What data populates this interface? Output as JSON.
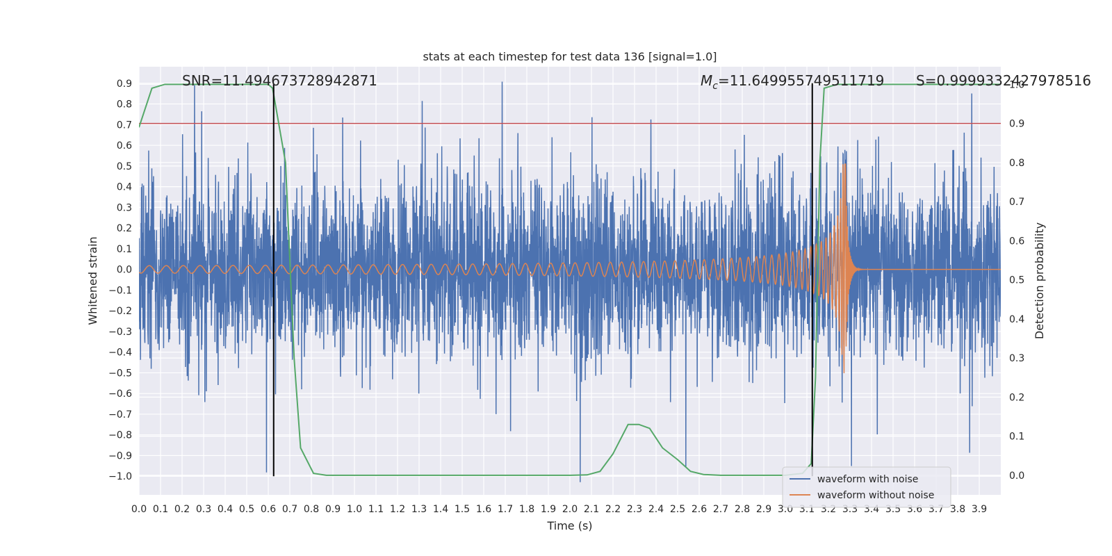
{
  "chart_data": {
    "type": "line",
    "title": "stats at each timestep for test data 136 [signal=1.0]",
    "xlabel": "Time (s)",
    "ylabel": "Whitened strain",
    "y2label": "Detection probability",
    "xlim": [
      0.0,
      4.0
    ],
    "ylim": [
      -1.09,
      0.98
    ],
    "y2lim": [
      -0.05,
      1.045
    ],
    "x_ticks": [
      0.0,
      0.1,
      0.2,
      0.3,
      0.4,
      0.5,
      0.6,
      0.7,
      0.8,
      0.9,
      1.0,
      1.1,
      1.2,
      1.3,
      1.4,
      1.5,
      1.6,
      1.7,
      1.8,
      1.9,
      2.0,
      2.1,
      2.2,
      2.3,
      2.4,
      2.5,
      2.6,
      2.7,
      2.8,
      2.9,
      3.0,
      3.1,
      3.2,
      3.3,
      3.4,
      3.5,
      3.6,
      3.7,
      3.8,
      3.9
    ],
    "y_ticks": [
      0.9,
      0.8,
      0.7,
      0.6,
      0.5,
      0.4,
      0.3,
      0.2,
      0.1,
      0.0,
      -0.1,
      -0.2,
      -0.3,
      -0.4,
      -0.5,
      -0.6,
      -0.7,
      -0.8,
      -0.9,
      -1.0
    ],
    "y_tick_labels": [
      "0.9",
      "0.8",
      "0.7",
      "0.6",
      "0.5",
      "0.4",
      "0.3",
      "0.2",
      "0.1",
      "0.0",
      "−0.1",
      "−0.2",
      "−0.3",
      "−0.4",
      "−0.5",
      "−0.6",
      "−0.7",
      "−0.8",
      "−0.9",
      "−1.0"
    ],
    "y2_ticks": [
      1.0,
      0.9,
      0.8,
      0.7,
      0.6,
      0.5,
      0.4,
      0.3,
      0.2,
      0.1,
      0.0
    ],
    "y2_tick_labels": [
      "1.0",
      "0.9",
      "0.8",
      "0.7",
      "0.6",
      "0.5",
      "0.4",
      "0.3",
      "0.2",
      "0.1",
      "0.0"
    ],
    "grid": true,
    "legend_position": "bottom-right",
    "series": [
      {
        "name": "waveform with noise",
        "color": "#4c72b0",
        "axis": "left",
        "kind": "noise",
        "x_range": [
          0.0,
          4.0
        ],
        "approx_envelope": [
          -1.0,
          0.9
        ]
      },
      {
        "name": "waveform without noise",
        "color": "#dd8452",
        "axis": "left",
        "kind": "chirp",
        "x_range": [
          0.0,
          4.0
        ],
        "merger_time": 3.28,
        "peak_amplitude": 0.51
      },
      {
        "name": "",
        "color": "#55a868",
        "axis": "right",
        "kind": "probability",
        "points": [
          [
            0.0,
            0.89
          ],
          [
            0.06,
            0.99
          ],
          [
            0.12,
            1.0
          ],
          [
            0.3,
            1.0
          ],
          [
            0.6,
            1.0
          ],
          [
            0.62,
            0.99
          ],
          [
            0.68,
            0.8
          ],
          [
            0.72,
            0.3
          ],
          [
            0.75,
            0.07
          ],
          [
            0.81,
            0.005
          ],
          [
            0.87,
            0.0
          ],
          [
            1.5,
            0.0
          ],
          [
            2.0,
            0.0
          ],
          [
            2.08,
            0.001
          ],
          [
            2.14,
            0.01
          ],
          [
            2.2,
            0.055
          ],
          [
            2.27,
            0.13
          ],
          [
            2.32,
            0.13
          ],
          [
            2.37,
            0.12
          ],
          [
            2.43,
            0.07
          ],
          [
            2.5,
            0.04
          ],
          [
            2.56,
            0.01
          ],
          [
            2.62,
            0.002
          ],
          [
            2.7,
            0.0
          ],
          [
            3.0,
            0.0
          ],
          [
            3.08,
            0.005
          ],
          [
            3.12,
            0.03
          ],
          [
            3.14,
            0.25
          ],
          [
            3.16,
            0.8
          ],
          [
            3.18,
            0.99
          ],
          [
            3.24,
            1.0
          ],
          [
            3.4,
            1.0
          ],
          [
            4.0,
            1.0
          ]
        ]
      }
    ],
    "hlines": [
      {
        "axis": "right",
        "y": 0.9,
        "color": "#c44e52"
      }
    ],
    "vlines": [
      {
        "x": 0.625,
        "y_from": -1.0,
        "y_to": 0.9,
        "color": "#000000"
      },
      {
        "x": 3.125,
        "y_from": -1.0,
        "y_to": 0.9,
        "color": "#000000"
      }
    ],
    "annotations": {
      "snr": "SNR=11.494673728942871",
      "mc_symbol": "M",
      "mc_subscript": "c",
      "mc_value": "=11.649955749511719",
      "s": "S=0.9999332427978516"
    }
  }
}
